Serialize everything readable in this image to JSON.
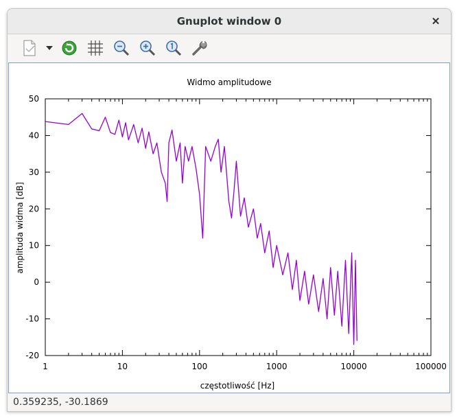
{
  "window": {
    "title": "Gnuplot window 0",
    "close_label": "✕"
  },
  "toolbar": {
    "items": [
      {
        "name": "export-icon"
      },
      {
        "name": "export-dropdown-icon"
      },
      {
        "name": "replot-icon"
      },
      {
        "name": "grid-icon"
      },
      {
        "name": "zoom-out-icon"
      },
      {
        "name": "zoom-in-icon"
      },
      {
        "name": "zoom-reset-icon"
      },
      {
        "name": "settings-wrench-icon"
      }
    ]
  },
  "status": {
    "coordinates": "0.359235, -30.1869"
  },
  "colors": {
    "series": "#9400d3",
    "axis": "#000000",
    "frame_border": "#7d9fd3"
  },
  "chart_data": {
    "type": "line",
    "title": "Widmo amplitudowe",
    "xlabel": "częstotliwość [Hz]",
    "ylabel": "amplituda widma [dB]",
    "xscale": "log",
    "xlim": [
      1,
      100000
    ],
    "ylim": [
      -20,
      50
    ],
    "xticks": [
      {
        "value": 1,
        "label": "1"
      },
      {
        "value": 10,
        "label": "10"
      },
      {
        "value": 100,
        "label": "100"
      },
      {
        "value": 1000,
        "label": "1000"
      },
      {
        "value": 10000,
        "label": "10000"
      },
      {
        "value": 100000,
        "label": "100000"
      }
    ],
    "yticks": [
      {
        "value": 50,
        "label": "50"
      },
      {
        "value": 40,
        "label": "40"
      },
      {
        "value": 30,
        "label": "30"
      },
      {
        "value": 20,
        "label": "20"
      },
      {
        "value": 10,
        "label": "10"
      },
      {
        "value": 0,
        "label": "0"
      },
      {
        "value": -10,
        "label": "-10"
      },
      {
        "value": -20,
        "label": "-20"
      }
    ],
    "grid": false,
    "series": [
      {
        "x": [
          1,
          2,
          3,
          4,
          5,
          6,
          7,
          8,
          9,
          10,
          11,
          12,
          14,
          16,
          18,
          20,
          22,
          25,
          28,
          32,
          36,
          38,
          40,
          44,
          50,
          56,
          60,
          65,
          72,
          80,
          90,
          100,
          110,
          120,
          140,
          160,
          175,
          190,
          210,
          240,
          260,
          280,
          300,
          340,
          380,
          430,
          500,
          560,
          620,
          700,
          800,
          900,
          1000,
          1200,
          1400,
          1600,
          1800,
          2000,
          2300,
          2600,
          3000,
          3500,
          4000,
          4500,
          5000,
          5600,
          6200,
          7000,
          7800,
          8600,
          9400,
          10000,
          10500,
          11000
        ],
        "y": [
          43.8,
          43,
          46,
          41.8,
          41.3,
          45,
          40.8,
          40.3,
          44.2,
          39.6,
          43.5,
          38.8,
          43,
          38,
          42,
          36.5,
          41,
          35,
          38,
          30,
          27,
          22,
          38,
          41.5,
          33,
          38,
          27,
          37,
          33,
          37,
          31,
          24,
          12,
          37,
          33,
          37,
          39,
          30,
          37,
          22,
          17.5,
          25,
          33,
          18,
          23,
          15,
          20,
          12,
          16,
          8,
          14,
          4,
          10,
          2,
          8,
          -2,
          6,
          -5,
          3,
          -6,
          2,
          -8,
          1,
          -10,
          4,
          -9,
          3,
          -12,
          6,
          -14,
          8,
          -17,
          6,
          -16
        ]
      }
    ]
  }
}
